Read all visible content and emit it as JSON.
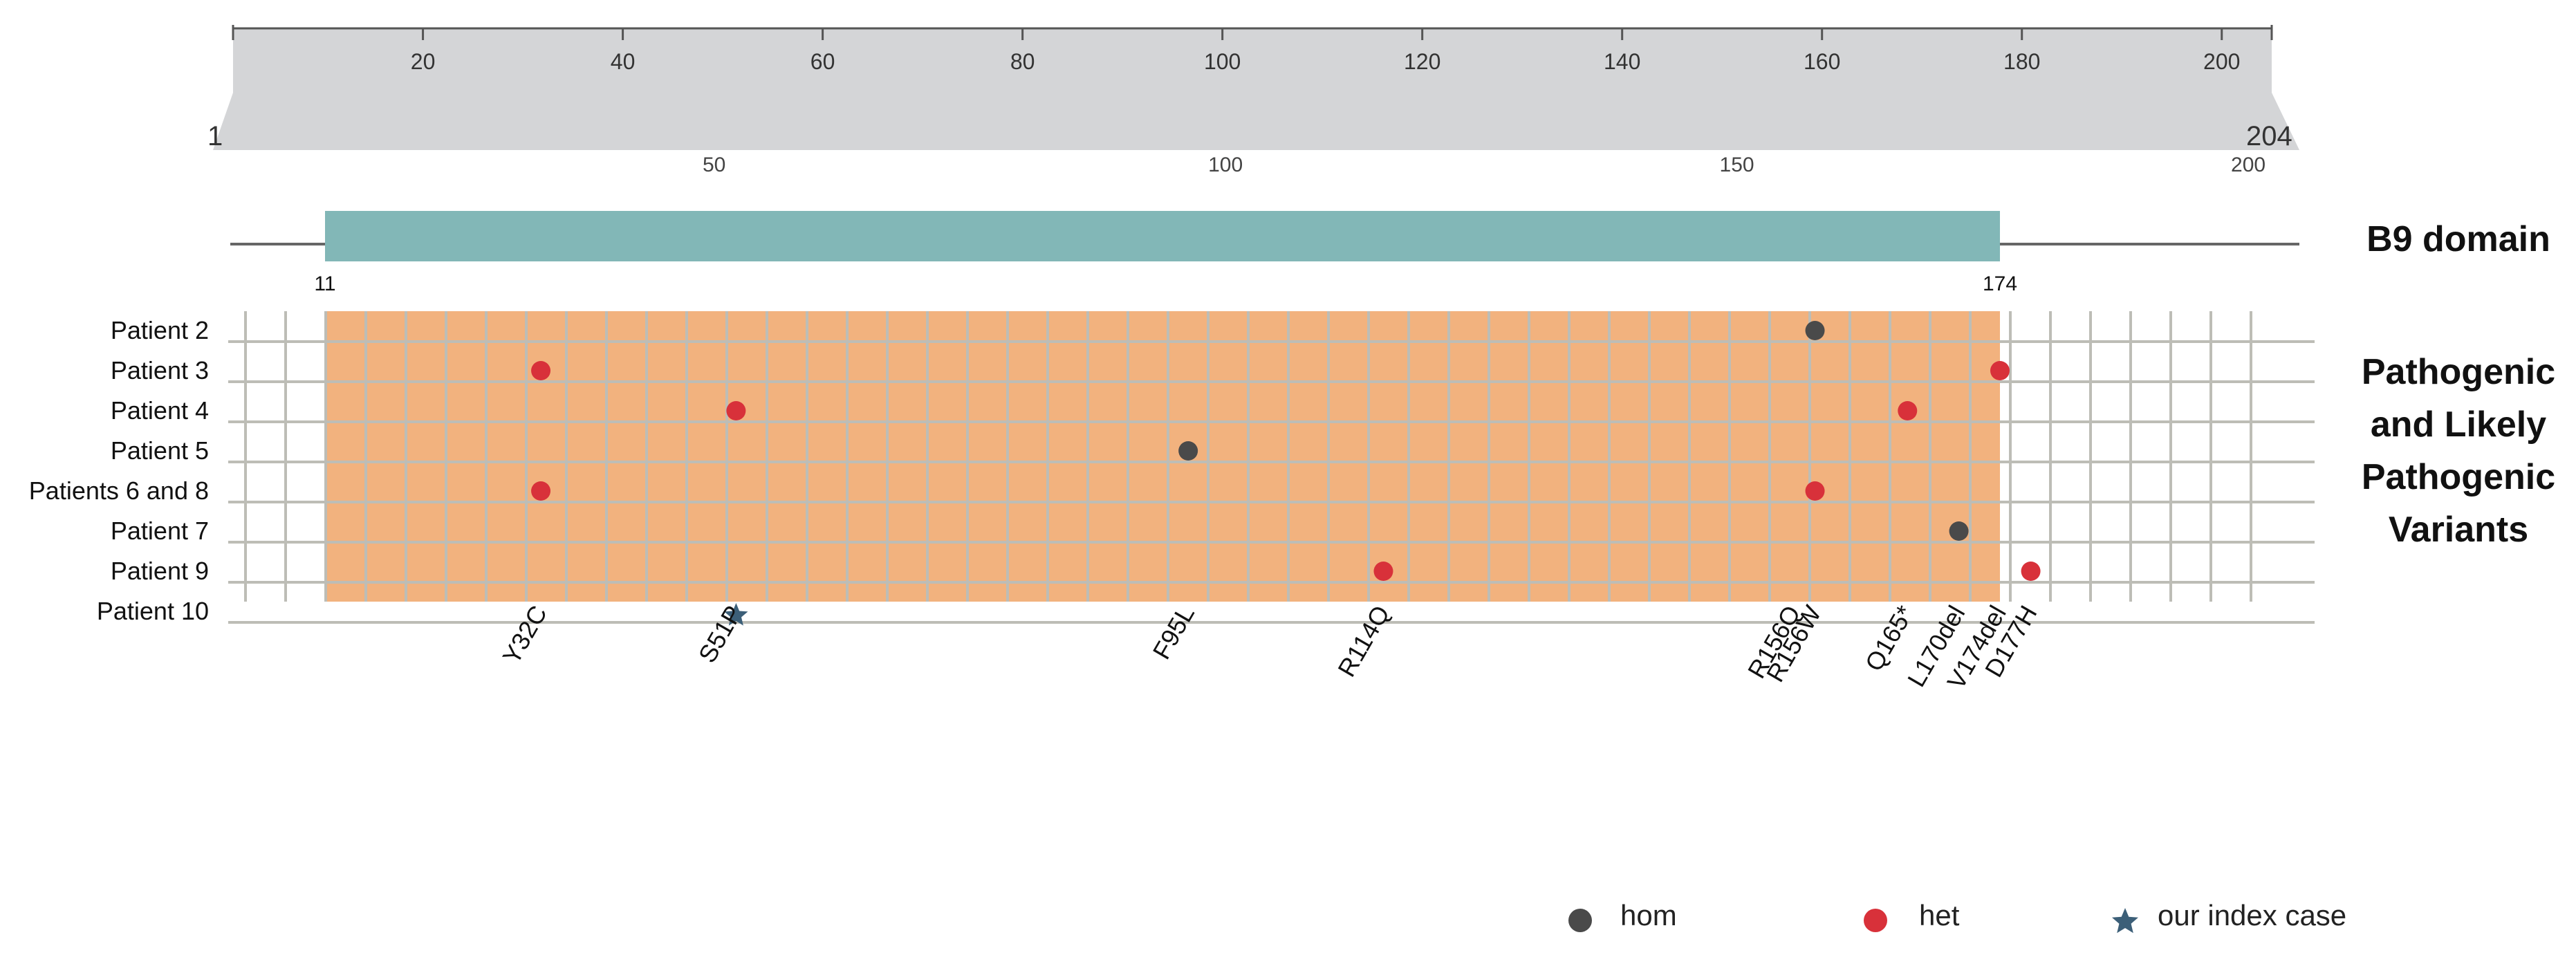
{
  "ruler": {
    "start_label": "1",
    "end_label": "204",
    "top_ticks": [
      {
        "value": 20,
        "label": "20"
      },
      {
        "value": 40,
        "label": "40"
      },
      {
        "value": 60,
        "label": "60"
      },
      {
        "value": 80,
        "label": "80"
      },
      {
        "value": 100,
        "label": "100"
      },
      {
        "value": 120,
        "label": "120"
      },
      {
        "value": 140,
        "label": "140"
      },
      {
        "value": 160,
        "label": "160"
      },
      {
        "value": 180,
        "label": "180"
      },
      {
        "value": 200,
        "label": "200"
      }
    ],
    "bottom_ticks": [
      {
        "value": 50,
        "label": "50"
      },
      {
        "value": 100,
        "label": "100"
      },
      {
        "value": 150,
        "label": "150"
      },
      {
        "value": 200,
        "label": "200"
      }
    ],
    "colors": {
      "band": "#d4d5d7",
      "band_edge": "#b4b5b8"
    }
  },
  "domain": {
    "name": "B9 domain",
    "start": 11,
    "end": 174,
    "start_label": "11",
    "end_label": "174",
    "color": "#82b7b7"
  },
  "variants_panel": {
    "title_lines": [
      "Pathogenic",
      "and Likely",
      "Pathogenic",
      "Variants"
    ],
    "patients": [
      "Patient 2",
      "Patient 3",
      "Patient 4",
      "Patient 5",
      "Patients 6 and 8",
      "Patient 7",
      "Patient 9",
      "Patient 10"
    ],
    "grid_color": "#bdbdb6",
    "domain_fill": "#f2b27e"
  },
  "variants": [
    {
      "patient": "Patient 2",
      "position": 156,
      "type": "hom"
    },
    {
      "patient": "Patient 3",
      "position": 32,
      "type": "het"
    },
    {
      "patient": "Patient 3",
      "position": 174,
      "type": "het"
    },
    {
      "patient": "Patient 4",
      "position": 51,
      "type": "het"
    },
    {
      "patient": "Patient 4",
      "position": 165,
      "type": "het"
    },
    {
      "patient": "Patient 5",
      "position": 95,
      "type": "hom"
    },
    {
      "patient": "Patients 6 and 8",
      "position": 32,
      "type": "het"
    },
    {
      "patient": "Patients 6 and 8",
      "position": 156,
      "type": "het"
    },
    {
      "patient": "Patient 7",
      "position": 170,
      "type": "hom"
    },
    {
      "patient": "Patient 9",
      "position": 114,
      "type": "het"
    },
    {
      "patient": "Patient 9",
      "position": 177,
      "type": "het"
    },
    {
      "patient": "Patient 10",
      "position": 51,
      "type": "index"
    }
  ],
  "mutation_labels": [
    {
      "text": "Y32C",
      "position": 32
    },
    {
      "text": "S51P",
      "position": 51
    },
    {
      "text": "F95L",
      "position": 95
    },
    {
      "text": "R114Q",
      "position": 114
    },
    {
      "text": "R156W",
      "position": 156,
      "stack": 0
    },
    {
      "text": "R156Q",
      "position": 156,
      "stack": 1
    },
    {
      "text": "Q165*",
      "position": 165
    },
    {
      "text": "L170del",
      "position": 170
    },
    {
      "text": "V174del",
      "position": 174
    },
    {
      "text": "D177H",
      "position": 177
    }
  ],
  "legend": [
    {
      "key": "hom",
      "label": "hom",
      "color": "#4a4a4a"
    },
    {
      "key": "het",
      "label": "het",
      "color": "#d8313a"
    },
    {
      "key": "index",
      "label": "our index case",
      "color": "#3c5f78"
    }
  ]
}
